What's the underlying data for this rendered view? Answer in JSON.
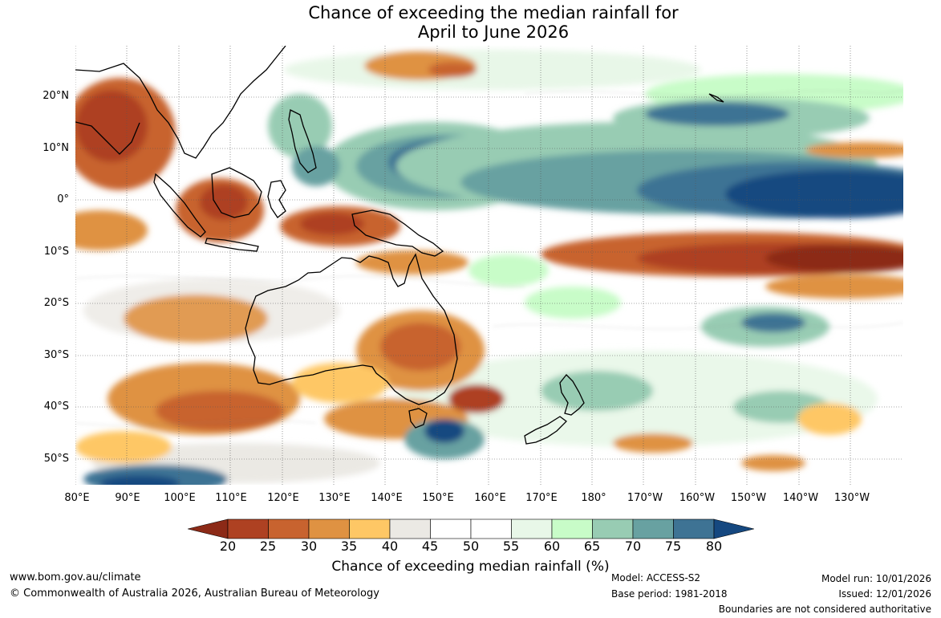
{
  "title": {
    "line1": "Chance of exceeding the median rainfall for",
    "line2": "April to June 2026"
  },
  "map": {
    "latitude_labels": [
      "20°N",
      "10°N",
      "0°",
      "10°S",
      "20°S",
      "30°S",
      "40°S",
      "50°S"
    ],
    "longitude_labels": [
      "80°E",
      "90°E",
      "100°E",
      "110°E",
      "120°E",
      "130°E",
      "140°E",
      "150°E",
      "160°E",
      "170°E",
      "180°",
      "170°W",
      "160°W",
      "150°W",
      "140°W",
      "130°W"
    ],
    "land_outline_color": "#000000"
  },
  "legend": {
    "ticks": [
      "20",
      "25",
      "30",
      "35",
      "40",
      "45",
      "50",
      "55",
      "60",
      "65",
      "70",
      "75",
      "80"
    ],
    "label": "Chance of exceeding median rainfall (%)",
    "colors": {
      "below_20": "#8c2a17",
      "20_25": "#ae4122",
      "25_30": "#c8632f",
      "30_35": "#df9242",
      "35_40": "#fec765",
      "40_45": "#ebe9e4",
      "45_50": "#ffffff",
      "50_55": "#ffffff",
      "55_60": "#e8f7e8",
      "60_65": "#c8fcc8",
      "65_70": "#98ccb3",
      "70_75": "#68a1a1",
      "75_80": "#3e7394",
      "above_80": "#154880"
    }
  },
  "footer": {
    "website": "www.bom.gov.au/climate",
    "copyright": "© Commonwealth of Australia 2026, Australian Bureau of Meteorology",
    "model": "Model: ACCESS-S2",
    "base_period": "Base period: 1981-2018",
    "model_run": "Model run: 10/01/2026",
    "issued": "Issued: 12/01/2026",
    "disclaimer": "Boundaries are not considered authoritative"
  }
}
